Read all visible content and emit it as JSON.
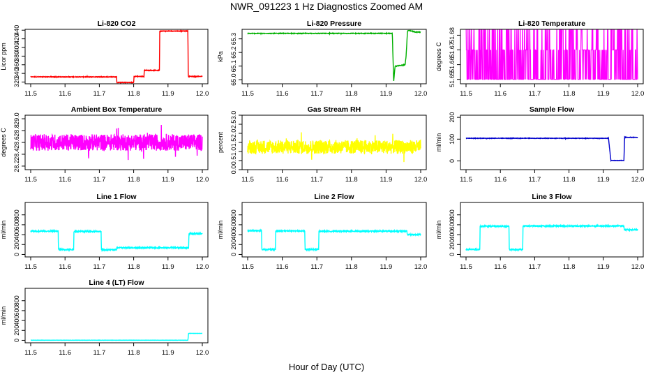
{
  "page": {
    "title": "NWR_091223  1 Hz Diagnostics Zoomed AM",
    "xlabel": "Hour of Day (UTC)"
  },
  "chart_data": [
    {
      "type": "line",
      "title": "Li-820 CO2",
      "ylabel": "Licor ppm",
      "color": "#ff0000",
      "xlim": [
        11.5,
        12.0
      ],
      "ylim": [
        316,
        442
      ],
      "xticks": [
        "11.5",
        "11.6",
        "11.7",
        "11.8",
        "11.9",
        "12.0"
      ],
      "xtick_values": [
        11.5,
        11.6,
        11.7,
        11.8,
        11.9,
        12.0
      ],
      "yticks": [
        "320",
        "340",
        "360",
        "380",
        "400",
        "420",
        "440"
      ],
      "ytick_values": [
        320,
        340,
        360,
        380,
        400,
        420,
        440
      ],
      "noise": 0.7,
      "x": [
        11.5,
        11.75,
        11.751,
        11.8,
        11.801,
        11.83,
        11.831,
        11.875,
        11.876,
        11.958,
        11.959,
        12.0
      ],
      "y": [
        332,
        332,
        319,
        319,
        333,
        333,
        347,
        347,
        438,
        438,
        333,
        333
      ]
    },
    {
      "type": "line",
      "title": "Li-820 Pressure",
      "ylabel": "kPa",
      "color": "#00b000",
      "xlim": [
        11.5,
        12.0
      ],
      "ylim": [
        64.97,
        65.37
      ],
      "xticks": [
        "11.5",
        "11.6",
        "11.7",
        "11.8",
        "11.9",
        "12.0"
      ],
      "xtick_values": [
        11.5,
        11.6,
        11.7,
        11.8,
        11.9,
        12.0
      ],
      "yticks": [
        "65.0",
        "65.1",
        "65.2",
        "65.3"
      ],
      "ytick_values": [
        65.0,
        65.1,
        65.2,
        65.3
      ],
      "noise": 0.002,
      "x": [
        11.5,
        11.91,
        11.918,
        11.922,
        11.926,
        11.93,
        11.955,
        11.958,
        11.962,
        11.97,
        11.985,
        12.0
      ],
      "y": [
        65.34,
        65.34,
        65.34,
        64.985,
        65.1,
        65.1,
        65.11,
        65.18,
        65.36,
        65.36,
        65.35,
        65.35
      ]
    },
    {
      "type": "line",
      "title": "Li-820 Temperature",
      "ylabel": "degrees C",
      "color": "#ff00ff",
      "xlim": [
        11.5,
        12.0
      ],
      "ylim": [
        51.647,
        51.684
      ],
      "xticks": [
        "11.5",
        "11.6",
        "11.7",
        "11.8",
        "11.9",
        "12.0"
      ],
      "xtick_values": [
        11.5,
        11.6,
        11.7,
        11.8,
        11.9,
        12.0
      ],
      "yticks": [
        "51.65",
        "51.66",
        "51.67",
        "51.68"
      ],
      "ytick_values": [
        51.65,
        51.66,
        51.67,
        51.68
      ],
      "style": "toggle",
      "levels": [
        51.65,
        51.67,
        51.69
      ],
      "x": [
        11.5,
        12.0
      ],
      "y": [
        51.67,
        51.67
      ]
    },
    {
      "type": "line",
      "title": "Ambient Box Temperature",
      "ylabel": "degrees C",
      "color": "#ff00ff",
      "xlim": [
        11.5,
        12.0
      ],
      "ylim": [
        28.14,
        29.06
      ],
      "xticks": [
        "11.5",
        "11.6",
        "11.7",
        "11.8",
        "11.9",
        "12.0"
      ],
      "xtick_values": [
        11.5,
        11.6,
        11.7,
        11.8,
        11.9,
        12.0
      ],
      "yticks": [
        "28.2",
        "28.4",
        "28.6",
        "28.8",
        "29.0"
      ],
      "ytick_values": [
        28.2,
        28.4,
        28.6,
        28.8,
        29.0
      ],
      "noise": 0.14,
      "x": [
        11.5,
        12.0
      ],
      "y": [
        28.6,
        28.6
      ]
    },
    {
      "type": "line",
      "title": "Gas Stream RH",
      "ylabel": "percent",
      "color": "#ffff00",
      "xlim": [
        11.5,
        12.0
      ],
      "ylim": [
        0.0,
        3.0
      ],
      "xticks": [
        "11.5",
        "11.6",
        "11.7",
        "11.8",
        "11.9",
        "12.0"
      ],
      "xtick_values": [
        11.5,
        11.6,
        11.7,
        11.8,
        11.9,
        12.0
      ],
      "yticks": [
        "0.0",
        "0.5",
        "1.0",
        "1.5",
        "2.0",
        "2.5",
        "3.0"
      ],
      "ytick_values": [
        0.0,
        0.5,
        1.0,
        1.5,
        2.0,
        2.5,
        3.0
      ],
      "noise": 0.38,
      "x": [
        11.5,
        12.0
      ],
      "y": [
        1.25,
        1.25
      ]
    },
    {
      "type": "line",
      "title": "Sample Flow",
      "ylabel": "ml/min",
      "color": "#0000cc",
      "xlim": [
        11.5,
        12.0
      ],
      "ylim": [
        -40,
        210
      ],
      "xticks": [
        "11.5",
        "11.6",
        "11.7",
        "11.8",
        "11.9",
        "12.0"
      ],
      "xtick_values": [
        11.5,
        11.6,
        11.7,
        11.8,
        11.9,
        12.0
      ],
      "yticks": [
        "0",
        "100",
        "200"
      ],
      "ytick_values": [
        0,
        100,
        200
      ],
      "noise": 1.0,
      "x": [
        11.5,
        11.915,
        11.922,
        11.96,
        11.962,
        12.0
      ],
      "y": [
        104,
        104,
        2,
        2,
        108,
        108
      ]
    },
    {
      "type": "line",
      "title": "Line 1 Flow",
      "ylabel": "ml/min",
      "color": "#00ffff",
      "xlim": [
        11.5,
        12.0
      ],
      "ylim": [
        -50,
        1050
      ],
      "xticks": [
        "11.5",
        "11.6",
        "11.7",
        "11.8",
        "11.9",
        "12.0"
      ],
      "xtick_values": [
        11.5,
        11.6,
        11.7,
        11.8,
        11.9,
        12.0
      ],
      "yticks": [
        "0",
        "200",
        "400",
        "600",
        "800"
      ],
      "ytick_values": [
        0,
        200,
        400,
        600,
        800
      ],
      "noise": 12,
      "x": [
        11.5,
        11.58,
        11.581,
        11.625,
        11.626,
        11.705,
        11.706,
        11.75,
        11.751,
        11.96,
        11.961,
        12.0
      ],
      "y": [
        470,
        470,
        100,
        100,
        465,
        465,
        95,
        95,
        135,
        135,
        420,
        420
      ]
    },
    {
      "type": "line",
      "title": "Line 2 Flow",
      "ylabel": "ml/min",
      "color": "#00ffff",
      "xlim": [
        11.5,
        12.0
      ],
      "ylim": [
        -50,
        1050
      ],
      "xticks": [
        "11.5",
        "11.6",
        "11.7",
        "11.8",
        "11.9",
        "12.0"
      ],
      "xtick_values": [
        11.5,
        11.6,
        11.7,
        11.8,
        11.9,
        12.0
      ],
      "yticks": [
        "0",
        "200",
        "400",
        "600",
        "800"
      ],
      "ytick_values": [
        0,
        200,
        400,
        600,
        800
      ],
      "noise": 12,
      "x": [
        11.5,
        11.54,
        11.541,
        11.58,
        11.581,
        11.665,
        11.666,
        11.705,
        11.706,
        11.96,
        11.961,
        12.0
      ],
      "y": [
        480,
        480,
        100,
        100,
        475,
        475,
        100,
        100,
        470,
        470,
        400,
        400
      ]
    },
    {
      "type": "line",
      "title": "Line 3 Flow",
      "ylabel": "ml/min",
      "color": "#00ffff",
      "xlim": [
        11.5,
        12.0
      ],
      "ylim": [
        -50,
        1050
      ],
      "xticks": [
        "11.5",
        "11.6",
        "11.7",
        "11.8",
        "11.9",
        "12.0"
      ],
      "xtick_values": [
        11.5,
        11.6,
        11.7,
        11.8,
        11.9,
        12.0
      ],
      "yticks": [
        "0",
        "200",
        "400",
        "600",
        "800"
      ],
      "ytick_values": [
        0,
        200,
        400,
        600,
        800
      ],
      "noise": 12,
      "x": [
        11.5,
        11.54,
        11.541,
        11.625,
        11.626,
        11.665,
        11.666,
        11.96,
        11.961,
        12.0
      ],
      "y": [
        100,
        100,
        570,
        570,
        100,
        100,
        575,
        575,
        500,
        500
      ]
    },
    {
      "type": "line",
      "title": "Line 4 (LT) Flow",
      "ylabel": "ml/min",
      "color": "#00ffff",
      "xlim": [
        11.5,
        12.0
      ],
      "ylim": [
        -50,
        1050
      ],
      "xticks": [
        "11.5",
        "11.6",
        "11.7",
        "11.8",
        "11.9",
        "12.0"
      ],
      "xtick_values": [
        11.5,
        11.6,
        11.7,
        11.8,
        11.9,
        12.0
      ],
      "yticks": [
        "0",
        "200",
        "400",
        "600",
        "800"
      ],
      "ytick_values": [
        0,
        200,
        400,
        600,
        800
      ],
      "noise": 2,
      "x": [
        11.5,
        11.958,
        11.96,
        12.0
      ],
      "y": [
        2,
        2,
        140,
        140
      ]
    }
  ]
}
